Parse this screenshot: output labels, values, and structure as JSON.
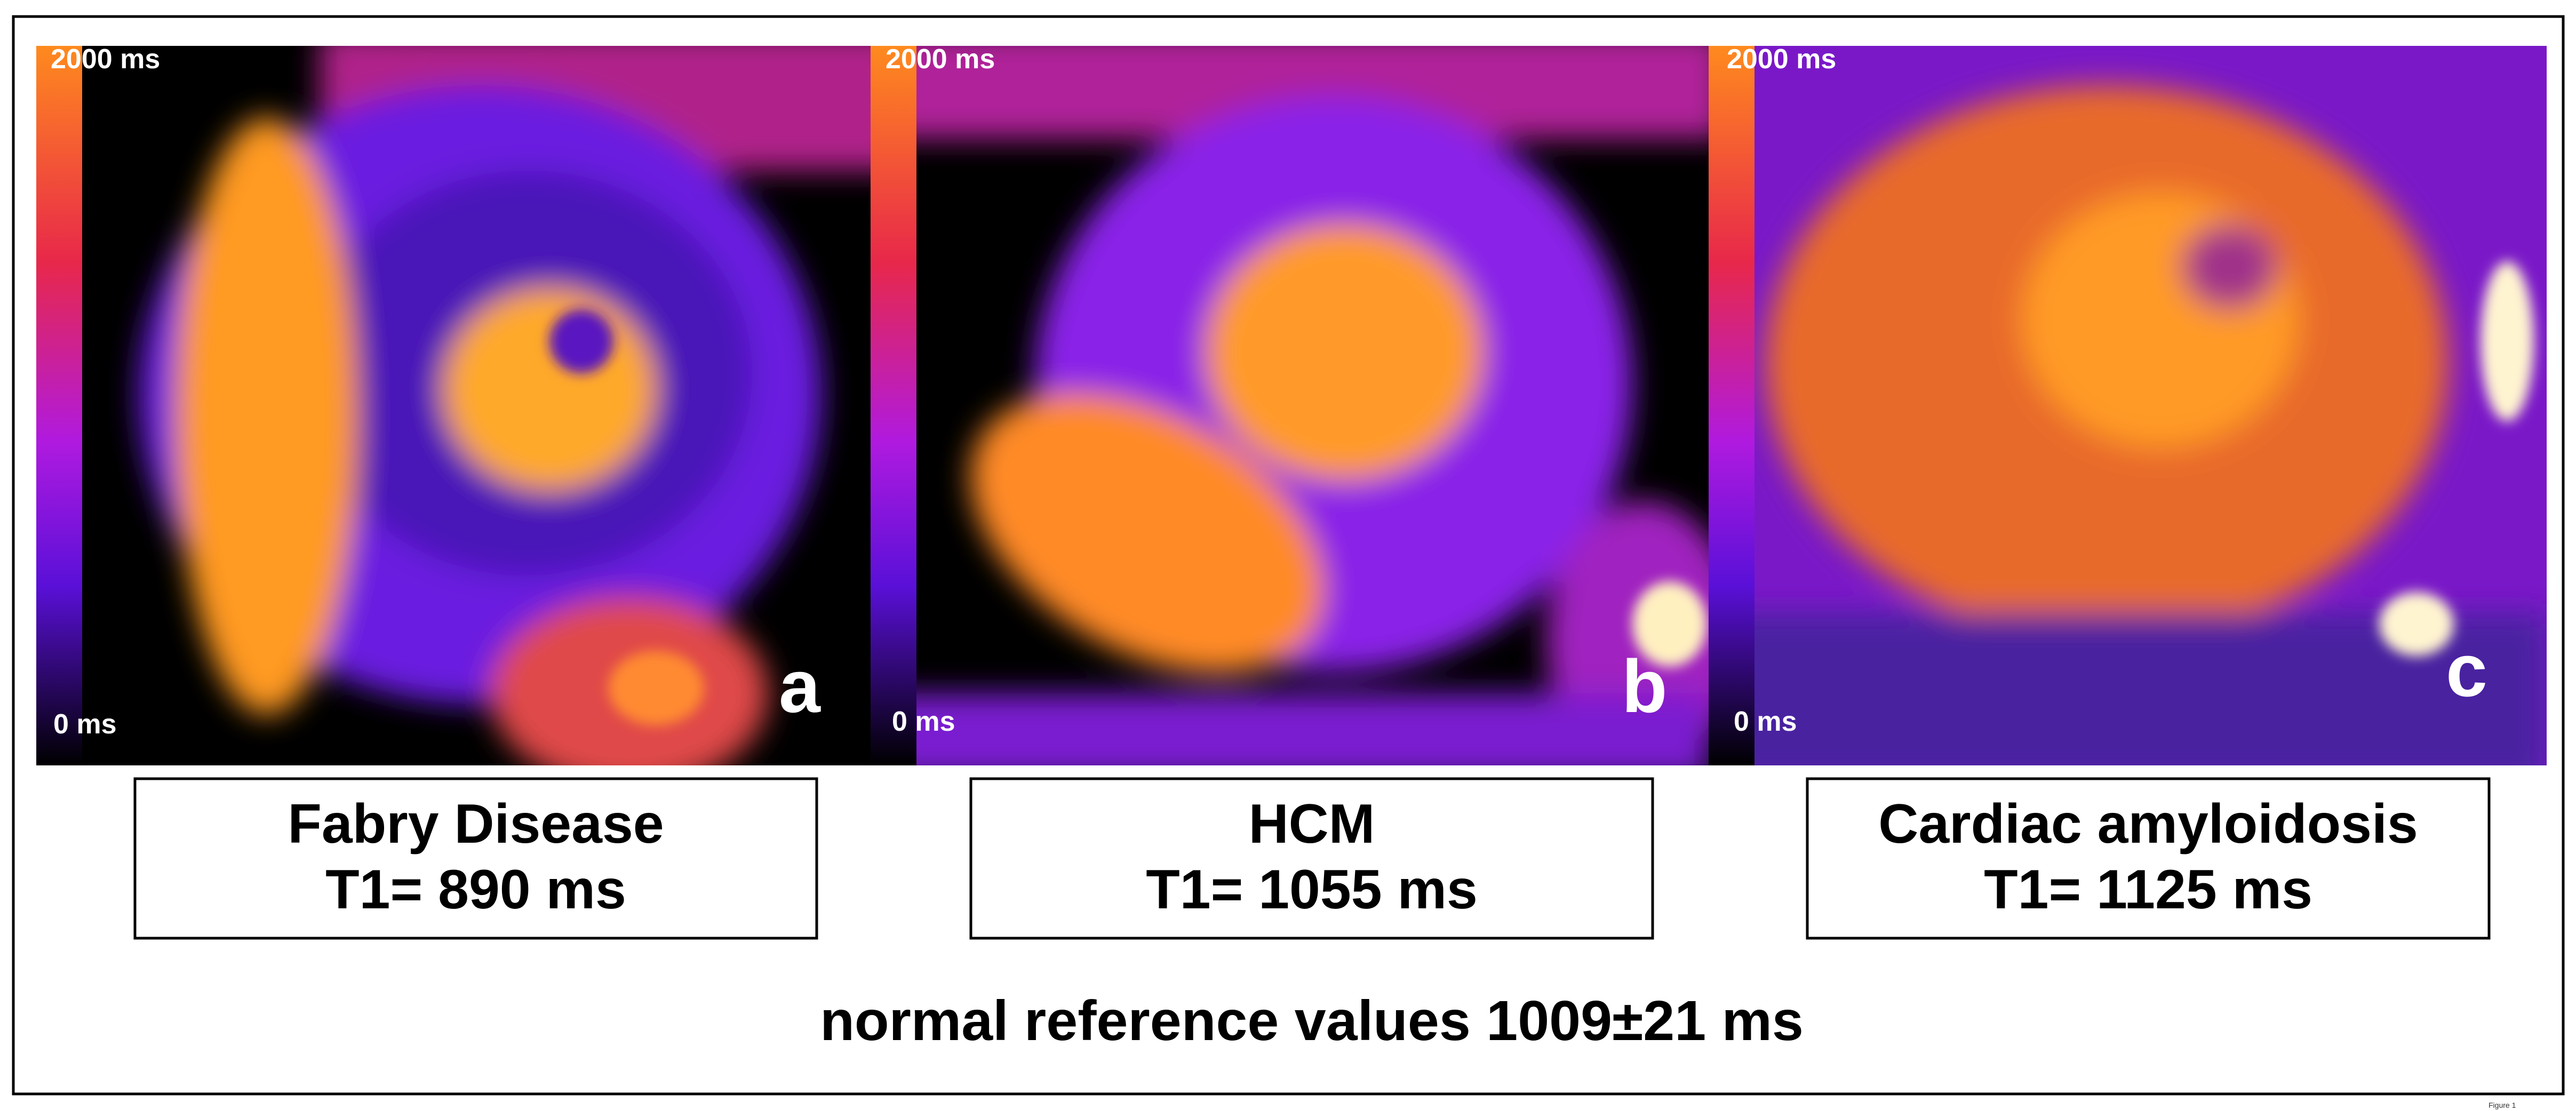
{
  "panels": [
    {
      "scale_max": "2000 ms",
      "scale_min": "0 ms",
      "letter": "a",
      "label": [
        "Fabry Disease",
        "T1= 890 ms"
      ]
    },
    {
      "scale_max": "2000 ms",
      "scale_min": "0 ms",
      "letter": "b",
      "label": [
        "HCM",
        "T1= 1055 ms"
      ]
    },
    {
      "scale_max": "2000 ms",
      "scale_min": "0 ms",
      "letter": "c",
      "label": [
        "Cardiac amyloidosis",
        "T1= 1125 ms"
      ]
    }
  ],
  "footer": "normal reference values 1009±21 ms",
  "corner_note": "Figure 1"
}
